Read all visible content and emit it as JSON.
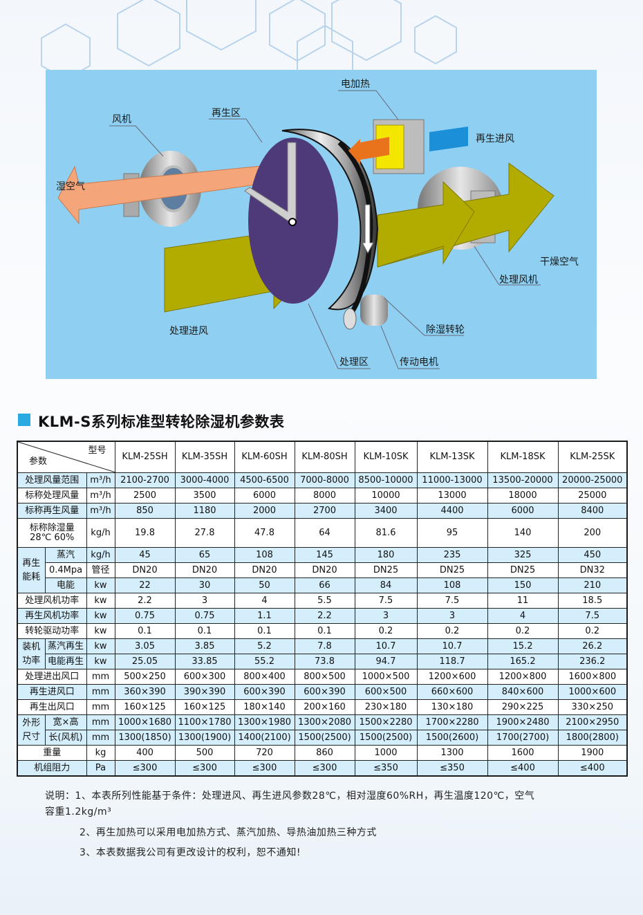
{
  "diagram": {
    "labels": {
      "electric_heater": "电加热",
      "regen_zone": "再生区",
      "fan": "风机",
      "regen_inlet": "再生进风",
      "wet_air": "湿空气",
      "dry_air": "干燥空气",
      "process_fan": "处理风机",
      "process_inlet": "处理进风",
      "desiccant_wheel": "除湿转轮",
      "process_zone": "处理区",
      "drive_motor": "传动电机"
    },
    "colors": {
      "background": "#8fd0f2",
      "wheel": "#4e3a78",
      "process_air": "#b3ac00",
      "wet_air": "#f4a57a",
      "heated_air": "#e8731c",
      "regen_air": "#1b90d8",
      "heater": "#f3e600"
    }
  },
  "title": "KLM-S系列标准型转轮除湿机参数表",
  "accent_color": "#29abe2",
  "table": {
    "param_label": "参数",
    "model_label": "型号",
    "models": [
      "KLM-25SH",
      "KLM-35SH",
      "KLM-60SH",
      "KLM-80SH",
      "KLM-10SK",
      "KLM-13SK",
      "KLM-18SK",
      "KLM-25SK"
    ],
    "rows": [
      {
        "label": "处理风量范围",
        "unit": "m³/h",
        "highlight": true,
        "values": [
          "2100-2700",
          "3000-4000",
          "4500-6500",
          "7000-8000",
          "8500-10000",
          "11000-13000",
          "13500-20000",
          "20000-25000"
        ]
      },
      {
        "label": "标称处理风量",
        "unit": "m³/h",
        "highlight": false,
        "values": [
          "2500",
          "3500",
          "6000",
          "8000",
          "10000",
          "13000",
          "18000",
          "25000"
        ]
      },
      {
        "label": "标称再生风量",
        "unit": "m³/h",
        "highlight": true,
        "values": [
          "850",
          "1180",
          "2000",
          "2700",
          "3400",
          "4400",
          "6000",
          "8400"
        ]
      },
      {
        "label": "标称除湿量",
        "label2": "28℃ 60%",
        "unit": "kg/h",
        "highlight": false,
        "values": [
          "19.8",
          "27.8",
          "47.8",
          "64",
          "81.6",
          "95",
          "140",
          "200"
        ]
      },
      {
        "group": "再生能耗",
        "group_rows": 3,
        "sub": "蒸汽",
        "unit": "kg/h",
        "highlight": true,
        "values": [
          "45",
          "65",
          "108",
          "145",
          "180",
          "235",
          "325",
          "450"
        ]
      },
      {
        "sub": "0.4Mpa",
        "unit": "管径",
        "highlight": false,
        "values": [
          "DN20",
          "DN20",
          "DN20",
          "DN20",
          "DN25",
          "DN25",
          "DN25",
          "DN32"
        ]
      },
      {
        "sub": "电能",
        "unit": "kw",
        "highlight": true,
        "values": [
          "22",
          "30",
          "50",
          "66",
          "84",
          "108",
          "150",
          "210"
        ]
      },
      {
        "label": "处理风机功率",
        "unit": "kw",
        "highlight": false,
        "values": [
          "2.2",
          "3",
          "4",
          "5.5",
          "7.5",
          "7.5",
          "11",
          "18.5"
        ]
      },
      {
        "label": "再生风机功率",
        "unit": "kw",
        "highlight": true,
        "values": [
          "0.75",
          "0.75",
          "1.1",
          "2.2",
          "3",
          "3",
          "4",
          "7.5"
        ]
      },
      {
        "label": "转轮驱动功率",
        "unit": "kw",
        "highlight": false,
        "values": [
          "0.1",
          "0.1",
          "0.1",
          "0.1",
          "0.2",
          "0.2",
          "0.2",
          "0.2"
        ]
      },
      {
        "group": "装机功率",
        "group_rows": 2,
        "sub": "蒸汽再生",
        "unit": "kw",
        "highlight": true,
        "values": [
          "3.05",
          "3.85",
          "5.2",
          "7.8",
          "10.7",
          "10.7",
          "15.2",
          "26.2"
        ]
      },
      {
        "sub": "电能再生",
        "unit": "kw",
        "highlight": true,
        "values": [
          "25.05",
          "33.85",
          "55.2",
          "73.8",
          "94.7",
          "118.7",
          "165.2",
          "236.2"
        ]
      },
      {
        "label": "处理进出风口",
        "unit": "mm",
        "highlight": false,
        "values": [
          "500×250",
          "600×300",
          "800×400",
          "800×500",
          "1000×500",
          "1200×600",
          "1200×800",
          "1600×800"
        ]
      },
      {
        "label": "再生进风口",
        "unit": "mm",
        "highlight": true,
        "values": [
          "360×390",
          "390×390",
          "600×390",
          "600×390",
          "600×500",
          "660×600",
          "840×600",
          "1000×600"
        ]
      },
      {
        "label": "再生出风口",
        "unit": "mm",
        "highlight": false,
        "values": [
          "160×125",
          "160×125",
          "180×140",
          "200×160",
          "230×180",
          "130×180",
          "290×225",
          "330×250"
        ]
      },
      {
        "group": "外形尺寸",
        "group_rows": 2,
        "sub": "宽×高",
        "unit": "mm",
        "highlight": true,
        "values": [
          "1000×1680",
          "1100×1780",
          "1300×1980",
          "1300×2080",
          "1500×2280",
          "1700×2280",
          "1900×2480",
          "2100×2950"
        ]
      },
      {
        "sub": "长(风机)",
        "unit": "mm",
        "highlight": true,
        "values": [
          "1300(1850)",
          "1300(1900)",
          "1400(2100)",
          "1500(2500)",
          "1500(2500)",
          "1500(2600)",
          "1700(2700)",
          "1800(2800)"
        ]
      },
      {
        "label": "重量",
        "unit": "kg",
        "highlight": false,
        "values": [
          "400",
          "500",
          "720",
          "860",
          "1000",
          "1300",
          "1600",
          "1900"
        ]
      },
      {
        "label": "机组阻力",
        "unit": "Pa",
        "highlight": true,
        "values": [
          "≤300",
          "≤300",
          "≤300",
          "≤300",
          "≤350",
          "≤350",
          "≤400",
          "≤400"
        ]
      }
    ]
  },
  "notes": {
    "line1": "说明：1、本表所列性能基于条件：处理进风、再生进风参数28℃，相对湿度60%RH，再生温度120℃，空气",
    "line1b": "容重1.2kg/m³",
    "line2": "2、再生加热可以采用电加热方式、蒸汽加热、导热油加热三种方式",
    "line3": "3、本表数据我公司有更改设计的权利，恕不通知!"
  }
}
